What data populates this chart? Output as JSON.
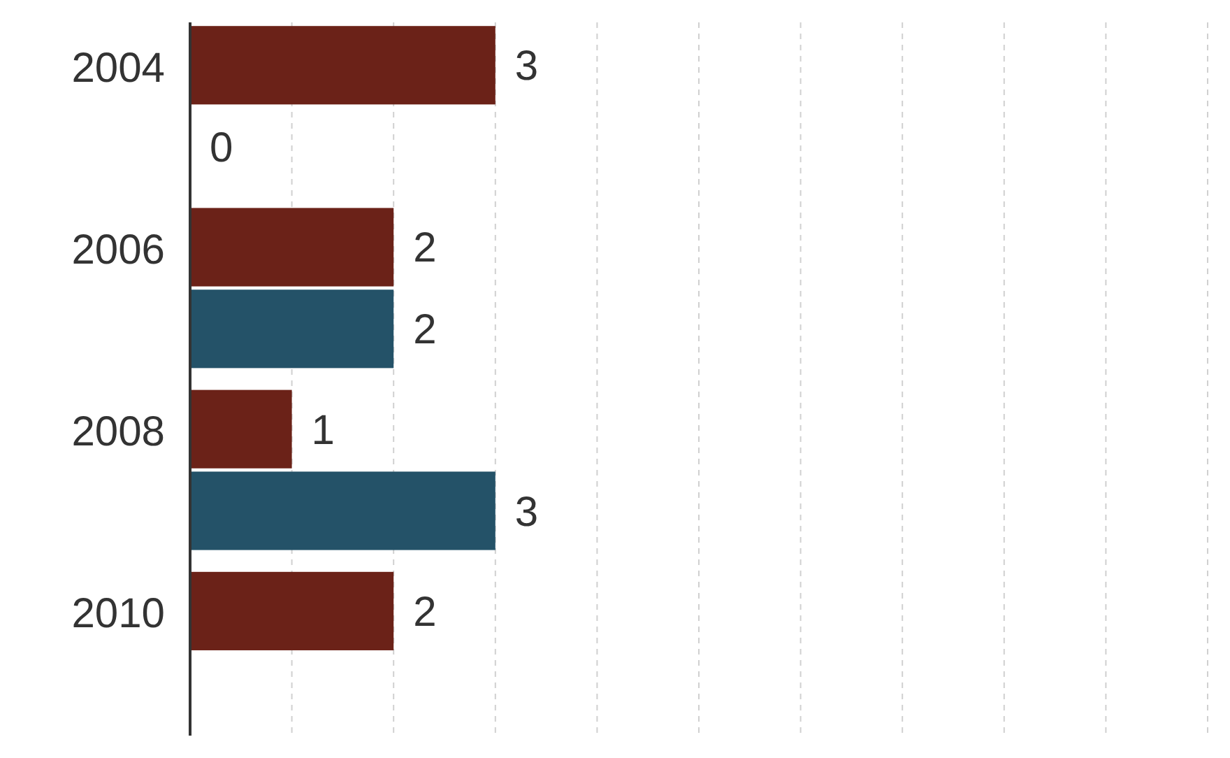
{
  "chart_data": {
    "type": "bar",
    "orientation": "horizontal",
    "categories": [
      "2004",
      "2006",
      "2008",
      "2010"
    ],
    "series": [
      {
        "color": "#6b2218",
        "values": [
          3,
          2,
          1,
          2
        ]
      },
      {
        "color": "#245268",
        "values": [
          0,
          2,
          3,
          null
        ]
      }
    ],
    "xlim": [
      0,
      10
    ],
    "xticks": [
      {
        "value": 0,
        "label": null
      },
      {
        "value": 1,
        "label": null
      },
      {
        "value": 2,
        "label": null
      },
      {
        "value": 3,
        "label": null
      },
      {
        "value": 4,
        "label": null
      },
      {
        "value": 5,
        "label": null
      },
      {
        "value": 6,
        "label": null
      },
      {
        "value": 7,
        "label": null
      },
      {
        "value": 8,
        "label": null
      },
      {
        "value": 9,
        "label": null
      },
      {
        "value": 10,
        "label": null
      }
    ],
    "tick_labels": "y",
    "grid": "x",
    "data_labels": true
  }
}
